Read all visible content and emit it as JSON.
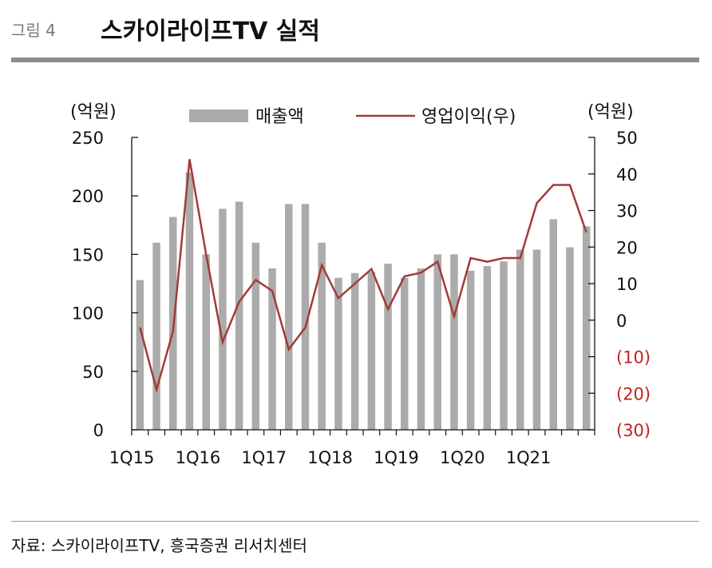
{
  "header": {
    "figure_label": "그림 4",
    "title": "스카이라이프TV 실적"
  },
  "source": "자료: 스카이라이프TV, 흥국증권 리서치센터",
  "colors": {
    "bar": "#ababab",
    "line": "#a23b36",
    "negative_label": "#c0221f"
  },
  "chart_data": {
    "type": "bar",
    "left_unit": "(억원)",
    "right_unit": "(억원)",
    "legend": [
      "매출액",
      "영업이익(우)"
    ],
    "legend_position": "top",
    "x_labels": [
      "1Q15",
      "1Q16",
      "1Q17",
      "1Q18",
      "1Q19",
      "1Q20",
      "1Q21"
    ],
    "x": [
      "1Q15",
      "2Q15",
      "3Q15",
      "4Q15",
      "1Q16",
      "2Q16",
      "3Q16",
      "4Q16",
      "1Q17",
      "2Q17",
      "3Q17",
      "4Q17",
      "1Q18",
      "2Q18",
      "3Q18",
      "4Q18",
      "1Q19",
      "2Q19",
      "3Q19",
      "4Q19",
      "1Q20",
      "2Q20",
      "3Q20",
      "4Q20",
      "1Q21",
      "2Q21",
      "3Q21",
      "4Q21"
    ],
    "y_left_ticks": [
      "250",
      "200",
      "150",
      "100",
      "50",
      "0"
    ],
    "y_right_ticks": [
      "50",
      "40",
      "30",
      "20",
      "10",
      "0",
      "(10)",
      "(20)",
      "(30)"
    ],
    "ylim_left": [
      0,
      250
    ],
    "ylim_right": [
      -30,
      50
    ],
    "grid": false,
    "series": [
      {
        "name": "매출액",
        "type": "bar",
        "axis": "left",
        "values": [
          128,
          160,
          182,
          220,
          150,
          189,
          195,
          160,
          138,
          193,
          193,
          160,
          130,
          134,
          135,
          142,
          130,
          138,
          150,
          150,
          136,
          140,
          144,
          154,
          154,
          180,
          156,
          174
        ]
      },
      {
        "name": "영업이익(우)",
        "type": "line",
        "axis": "right",
        "values": [
          -2,
          -19,
          -3,
          44,
          18,
          -6,
          5,
          11,
          8,
          -8,
          -2,
          15,
          6,
          10,
          14,
          3,
          12,
          13,
          16,
          1,
          17,
          16,
          17,
          17,
          32,
          37,
          37,
          24
        ]
      }
    ]
  }
}
